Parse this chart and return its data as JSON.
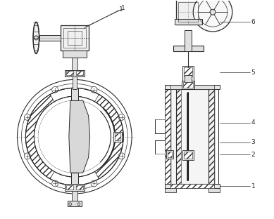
{
  "bg_color": "#ffffff",
  "line_color": "#2a2a2a",
  "fig_width": 3.89,
  "fig_height": 3.12,
  "dpi": 100
}
